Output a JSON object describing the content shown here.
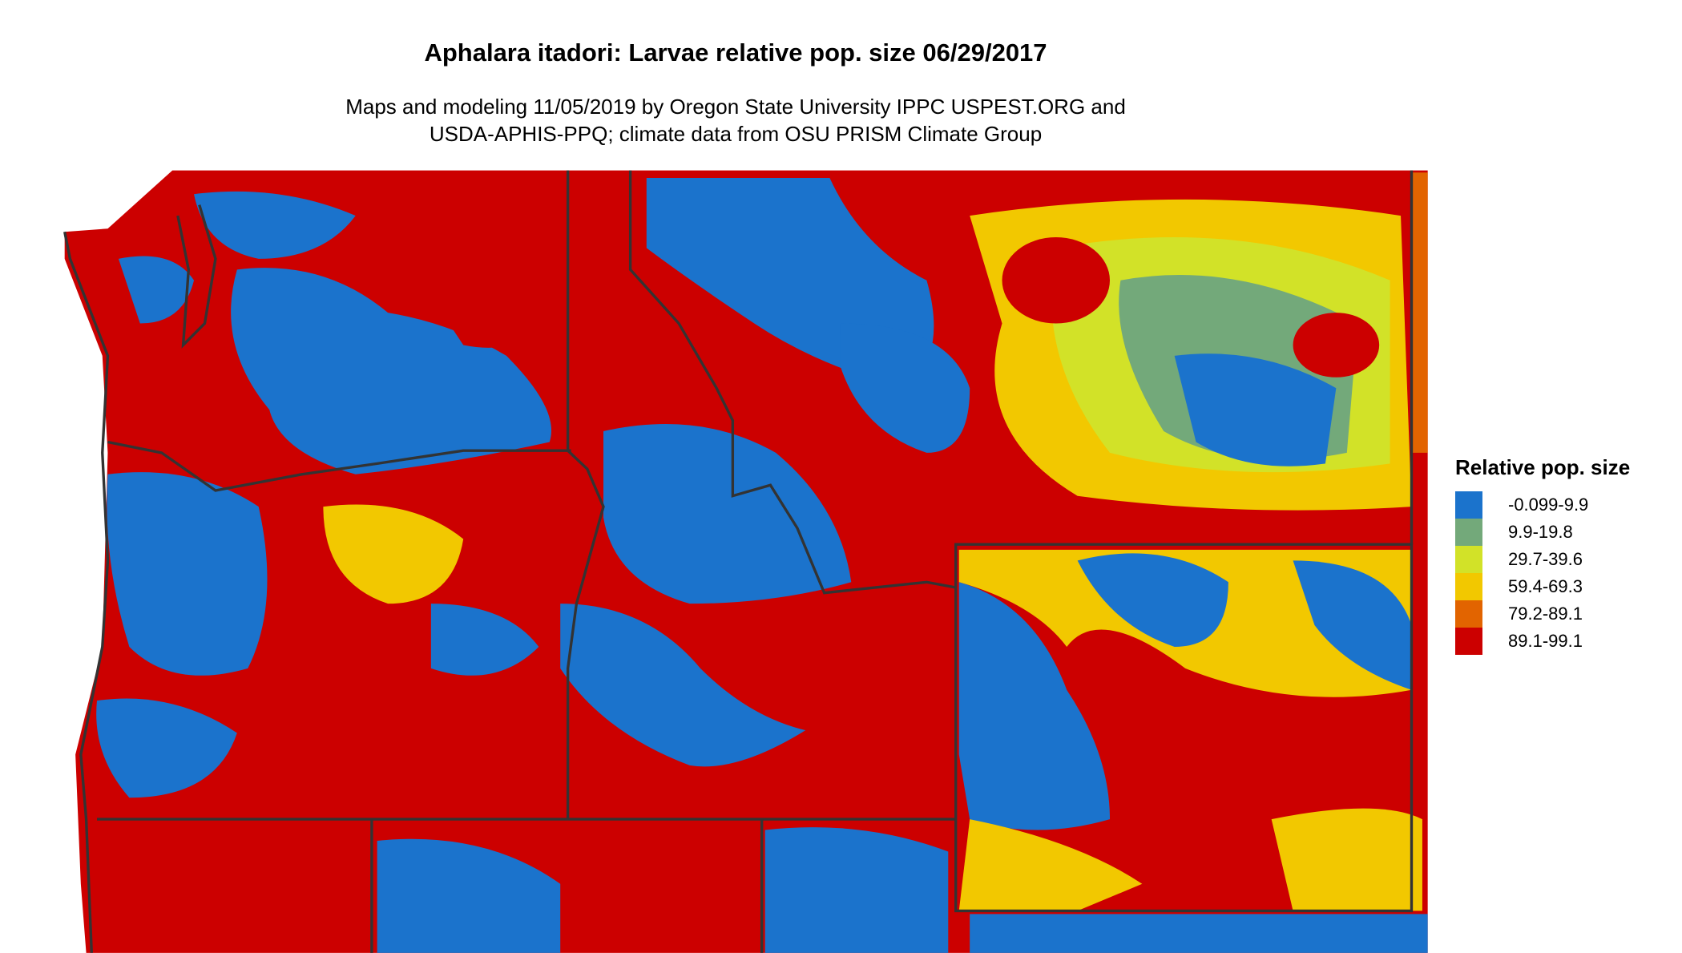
{
  "title": "Aphalara itadori: Larvae relative pop. size 06/29/2017",
  "subtitle_lines": [
    "Maps and modeling 11/05/2019 by Oregon State University IPPC USPEST.ORG and",
    "USDA-APHIS-PPQ; climate data from OSU PRISM Climate Group"
  ],
  "legend": {
    "title": "Relative pop. size",
    "items": [
      {
        "label": "-0.099-9.9",
        "color": "#1b73cc"
      },
      {
        "label": "9.9-19.8",
        "color": "#73a97a"
      },
      {
        "label": "29.7-39.6",
        "color": "#d2e228"
      },
      {
        "label": "59.4-69.3",
        "color": "#f2c800"
      },
      {
        "label": "79.2-89.1",
        "color": "#e26400"
      },
      {
        "label": "89.1-99.1",
        "color": "#cc0000"
      }
    ]
  },
  "colors": {
    "border": "#333333",
    "background": "#ffffff"
  }
}
